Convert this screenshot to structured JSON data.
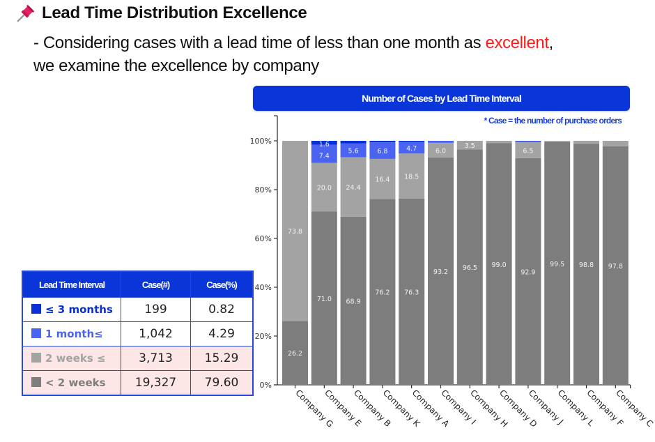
{
  "header": {
    "icon": "pushpin-icon",
    "title": "Lead Time Distribution Excellence",
    "desc_part1": "- Considering cases with a lead time of less than one month as ",
    "desc_highlight": "excellent",
    "desc_part2": ",",
    "desc_line2": "we examine the excellence by company"
  },
  "colors": {
    "le_3_months": "#0a2fd6",
    "1_month": "#4a63f0",
    "2_weeks": "#a3a3a3",
    "lt_2_weeks": "#7d7d7d",
    "header_bg": "#0a35d8",
    "highlight": "#ff1a1a"
  },
  "legend_table": {
    "headers": [
      "Lead Time Interval",
      "Case(#)",
      "Case(%)"
    ],
    "rows": [
      {
        "label": "≤ 3 months",
        "count": "199",
        "pct": "0.82",
        "color": "#0a2fd6",
        "text_color": "#0a2fd6"
      },
      {
        "label": "1 month≤",
        "count": "1,042",
        "pct": "4.29",
        "color": "#4a63f0",
        "text_color": "#4a63f0"
      },
      {
        "label": "2 weeks ≤",
        "count": "3,713",
        "pct": "15.29",
        "color": "#a3a3a3",
        "text_color": "#a3a3a3"
      },
      {
        "label": "< 2 weeks",
        "count": "19,327",
        "pct": "79.60",
        "color": "#7d7d7d",
        "text_color": "#7d7d7d"
      }
    ]
  },
  "chart_data": {
    "type": "bar",
    "stacked": true,
    "normalized": true,
    "title": "Number of Cases by Lead Time Interval",
    "footnote": "* Case = the number of purchase orders",
    "xlabel": "",
    "ylabel": "",
    "ylim": [
      0,
      100
    ],
    "yticks": [
      "0%",
      "20%",
      "40%",
      "60%",
      "80%",
      "100%"
    ],
    "categories": [
      "Company G",
      "Company E",
      "Company B",
      "Company K",
      "Company A",
      "Company I",
      "Company H",
      "Company D",
      "Company J",
      "Company L",
      "Company F",
      "Company C"
    ],
    "series": [
      {
        "name": "< 2 weeks",
        "color": "#7d7d7d",
        "values": [
          26.2,
          71.0,
          68.9,
          76.2,
          76.3,
          93.2,
          96.5,
          99.0,
          92.9,
          99.5,
          98.8,
          97.8
        ],
        "labels": [
          "26.2",
          "71.0",
          "68.9",
          "76.2",
          "76.3",
          "93.2",
          "96.5",
          "99.0",
          "92.9",
          "99.5",
          "98.8",
          "97.8"
        ]
      },
      {
        "name": "2 weeks ≤",
        "color": "#a3a3a3",
        "values": [
          73.8,
          20.0,
          24.4,
          16.4,
          18.5,
          6.0,
          3.5,
          1.0,
          6.5,
          0.5,
          1.2,
          2.2
        ],
        "labels": [
          "73.8",
          "20.0",
          "24.4",
          "16.4",
          "18.5",
          "6.0",
          "3.5",
          "",
          "6.5",
          "",
          "",
          ""
        ]
      },
      {
        "name": "1 month≤",
        "color": "#4a63f0",
        "values": [
          0,
          7.4,
          5.6,
          6.8,
          4.7,
          0.8,
          0,
          0,
          0.6,
          0,
          0,
          0
        ],
        "labels": [
          "",
          "7.4",
          "5.6",
          "6.8",
          "4.7",
          "",
          "",
          "",
          "",
          "",
          "",
          ""
        ]
      },
      {
        "name": "≤ 3 months",
        "color": "#0a2fd6",
        "values": [
          0,
          1.6,
          1.1,
          0.6,
          0.5,
          0,
          0,
          0,
          0,
          0,
          0,
          0
        ],
        "labels": [
          "",
          "1.6",
          "",
          "",
          "",
          "",
          "",
          "",
          "",
          "",
          "",
          ""
        ]
      }
    ],
    "grid": false,
    "legend": "left (table)"
  }
}
